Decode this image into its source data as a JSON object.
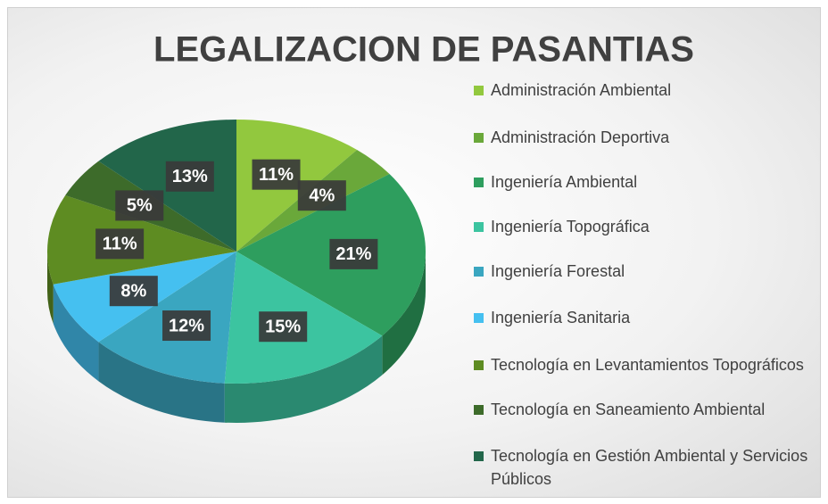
{
  "chart_data": {
    "type": "pie",
    "title": "LEGALIZACION DE PASANTIAS",
    "categories": [
      "Administración Ambiental",
      "Administración Deportiva",
      "Ingeniería Ambiental",
      "Ingeniería Topográfica",
      "Ingeniería Forestal",
      "Ingeniería Sanitaria",
      "Tecnología en Levantamientos Topográficos",
      "Tecnología en Saneamiento Ambiental",
      "Tecnología en Gestión Ambiental y Servicios Públicos"
    ],
    "values": [
      11,
      4,
      21,
      15,
      12,
      8,
      11,
      5,
      13
    ],
    "value_labels": [
      "11%",
      "4%",
      "21%",
      "15%",
      "12%",
      "8%",
      "11%",
      "5%",
      "13%"
    ],
    "colors": [
      "#92c83e",
      "#6aa83a",
      "#2e9e5e",
      "#3cc4a0",
      "#3aa6c0",
      "#45c0f0",
      "#5e8c22",
      "#3d6b2a",
      "#22664a"
    ],
    "legend": "right"
  }
}
